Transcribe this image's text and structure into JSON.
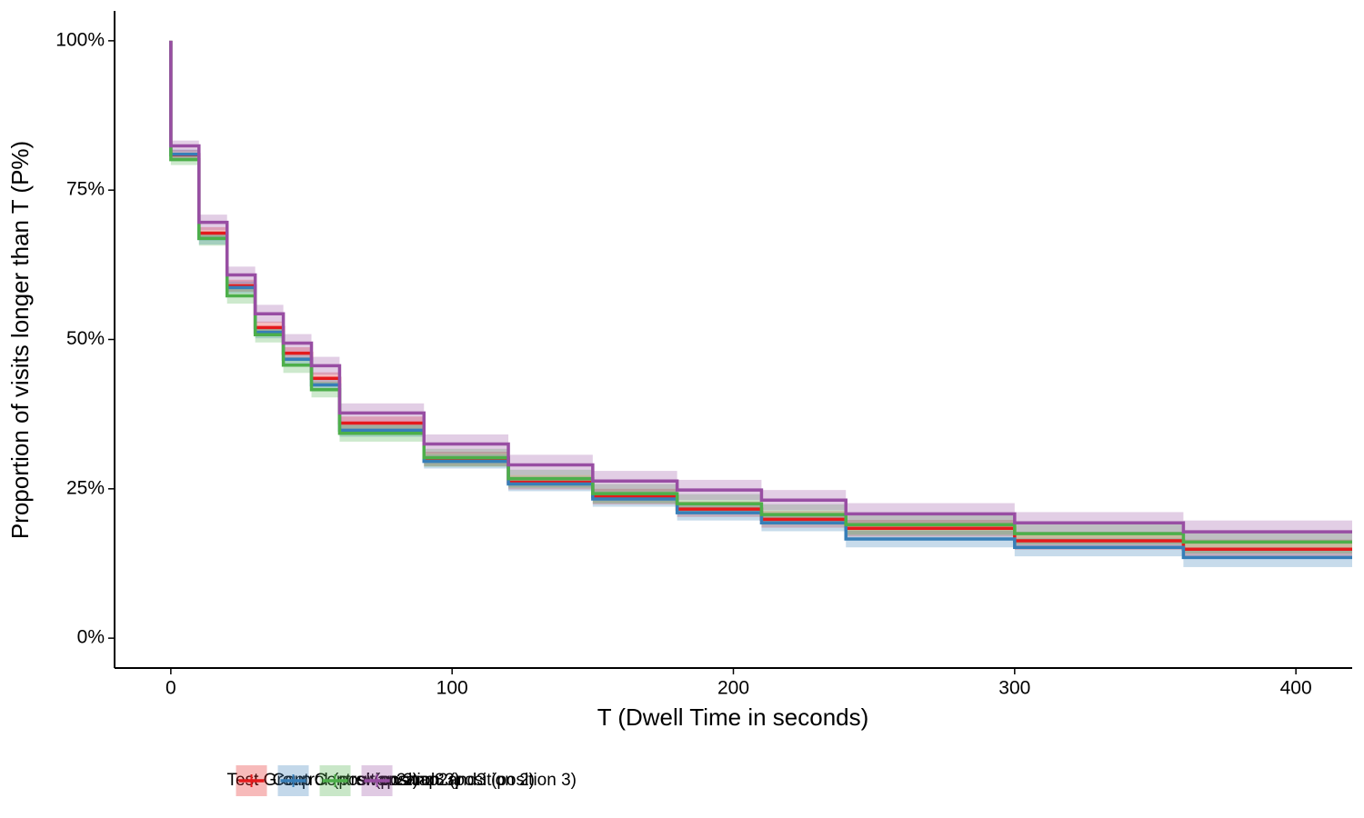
{
  "chart_data": {
    "type": "step",
    "x_label": "T (Dwell Time in seconds)",
    "y_label": "Proportion of visits longer than T (P%)",
    "legend_title": "Test Group",
    "legend_position": "bottom",
    "xlim": [
      -20,
      420
    ],
    "ylim": [
      -5,
      105
    ],
    "xticks": [
      0,
      100,
      200,
      300,
      400
    ],
    "yticks": [
      {
        "value": 0,
        "label": "0%"
      },
      {
        "value": 25,
        "label": "25%"
      },
      {
        "value": 50,
        "label": "50%"
      },
      {
        "value": 75,
        "label": "75%"
      },
      {
        "value": 100,
        "label": "100%"
      }
    ],
    "x": [
      0,
      0,
      10,
      20,
      30,
      40,
      50,
      60,
      90,
      120,
      150,
      180,
      210,
      240,
      300,
      360
    ],
    "series": [
      {
        "name": "Control (position 2)",
        "color": "#e41a1c",
        "values": [
          100,
          80.9,
          67.8,
          59,
          52,
          47.7,
          43.5,
          36,
          30,
          26.1,
          23.7,
          21.6,
          19.9,
          18.4,
          16.3,
          14.9
        ],
        "errors": [
          0,
          0.8,
          1,
          1,
          1,
          1,
          1,
          1.1,
          1.2,
          1.2,
          1.3,
          1.3,
          1.4,
          1.4,
          1.5,
          1.6
        ]
      },
      {
        "name": "Control (position 3)",
        "color": "#377eb8",
        "values": [
          100,
          81,
          66.9,
          58.7,
          51.2,
          46.7,
          42.4,
          34.8,
          29.6,
          25.8,
          23.3,
          21,
          19.3,
          16.6,
          15.2,
          13.5
        ],
        "errors": [
          0,
          0.8,
          1,
          1,
          1,
          1,
          1,
          1.1,
          1.2,
          1.2,
          1.3,
          1.3,
          1.4,
          1.4,
          1.5,
          1.6
        ]
      },
      {
        "name": "swap2and3 (position 2)",
        "color": "#4daf4a",
        "values": [
          100,
          80.1,
          66.9,
          57.3,
          50.8,
          45.7,
          41.6,
          34.3,
          30.2,
          26.7,
          24.2,
          22.5,
          20.7,
          19,
          17.5,
          16.1
        ],
        "errors": [
          0,
          0.9,
          1.2,
          1.3,
          1.3,
          1.3,
          1.3,
          1.4,
          1.5,
          1.5,
          1.6,
          1.6,
          1.7,
          1.7,
          1.8,
          1.9
        ]
      },
      {
        "name": "swap2and3 (position 3)",
        "color": "#984ea3",
        "values": [
          100,
          82.4,
          69.6,
          60.8,
          54.3,
          49.4,
          45.6,
          37.7,
          32.5,
          29,
          26.3,
          24.8,
          23.1,
          20.8,
          19.3,
          17.8
        ],
        "errors": [
          0,
          0.9,
          1.3,
          1.4,
          1.5,
          1.5,
          1.5,
          1.6,
          1.6,
          1.7,
          1.7,
          1.7,
          1.7,
          1.8,
          1.8,
          1.9
        ]
      }
    ]
  }
}
